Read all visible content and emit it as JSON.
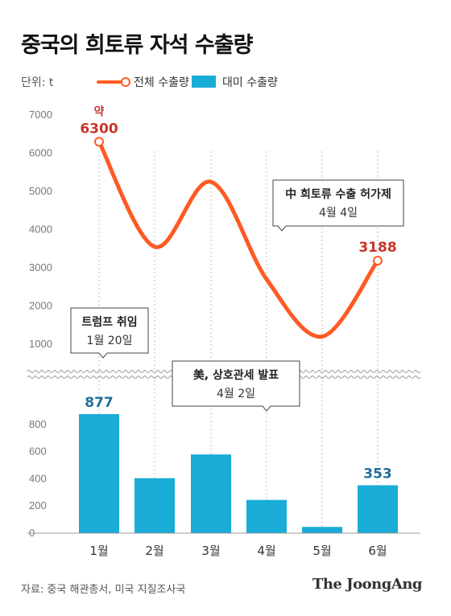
{
  "title": "중국의 희토류 자석 수출량",
  "unit_label": "단위: t",
  "legend": {
    "line_label": "전체 수출량",
    "bar_label": "대미 수출량"
  },
  "chart_data": [
    {
      "type": "line",
      "series": [
        {
          "name": "전체 수출량",
          "values": [
            6300,
            3550,
            5250,
            2700,
            1200,
            3188
          ]
        }
      ],
      "categories": [
        "1월",
        "2월",
        "3월",
        "4월",
        "5월",
        "6월"
      ],
      "ylim": [
        0,
        7000
      ],
      "yticks": [
        1000,
        2000,
        3000,
        4000,
        5000,
        6000,
        7000
      ],
      "data_labels": [
        {
          "index": 0,
          "prefix": "약",
          "text": "6300"
        },
        {
          "index": 5,
          "text": "3188"
        }
      ],
      "colors": {
        "line": "#ff5a24",
        "label": "#c8352a"
      }
    },
    {
      "type": "bar",
      "series": [
        {
          "name": "대미 수출량",
          "values": [
            877,
            405,
            580,
            245,
            46,
            353
          ]
        }
      ],
      "categories": [
        "1월",
        "2월",
        "3월",
        "4월",
        "5월",
        "6월"
      ],
      "ylim": [
        0,
        950
      ],
      "yticks": [
        0,
        200,
        400,
        600,
        800
      ],
      "data_labels": [
        {
          "index": 0,
          "text": "877"
        },
        {
          "index": 5,
          "text": "353"
        }
      ],
      "colors": {
        "bar": "#19acd6",
        "label": "#1f6f9a"
      }
    }
  ],
  "annotations": [
    {
      "title": "트럼프 취임",
      "subtitle": "1월 20일"
    },
    {
      "title": "美, 상호관세 발표",
      "subtitle": "4월 2일"
    },
    {
      "title": "中 희토류 수출 허가제",
      "subtitle": "4월 4일"
    }
  ],
  "source": "자료: 중국 해관총서, 미국 지질조사국",
  "brand": "The JoongAng"
}
